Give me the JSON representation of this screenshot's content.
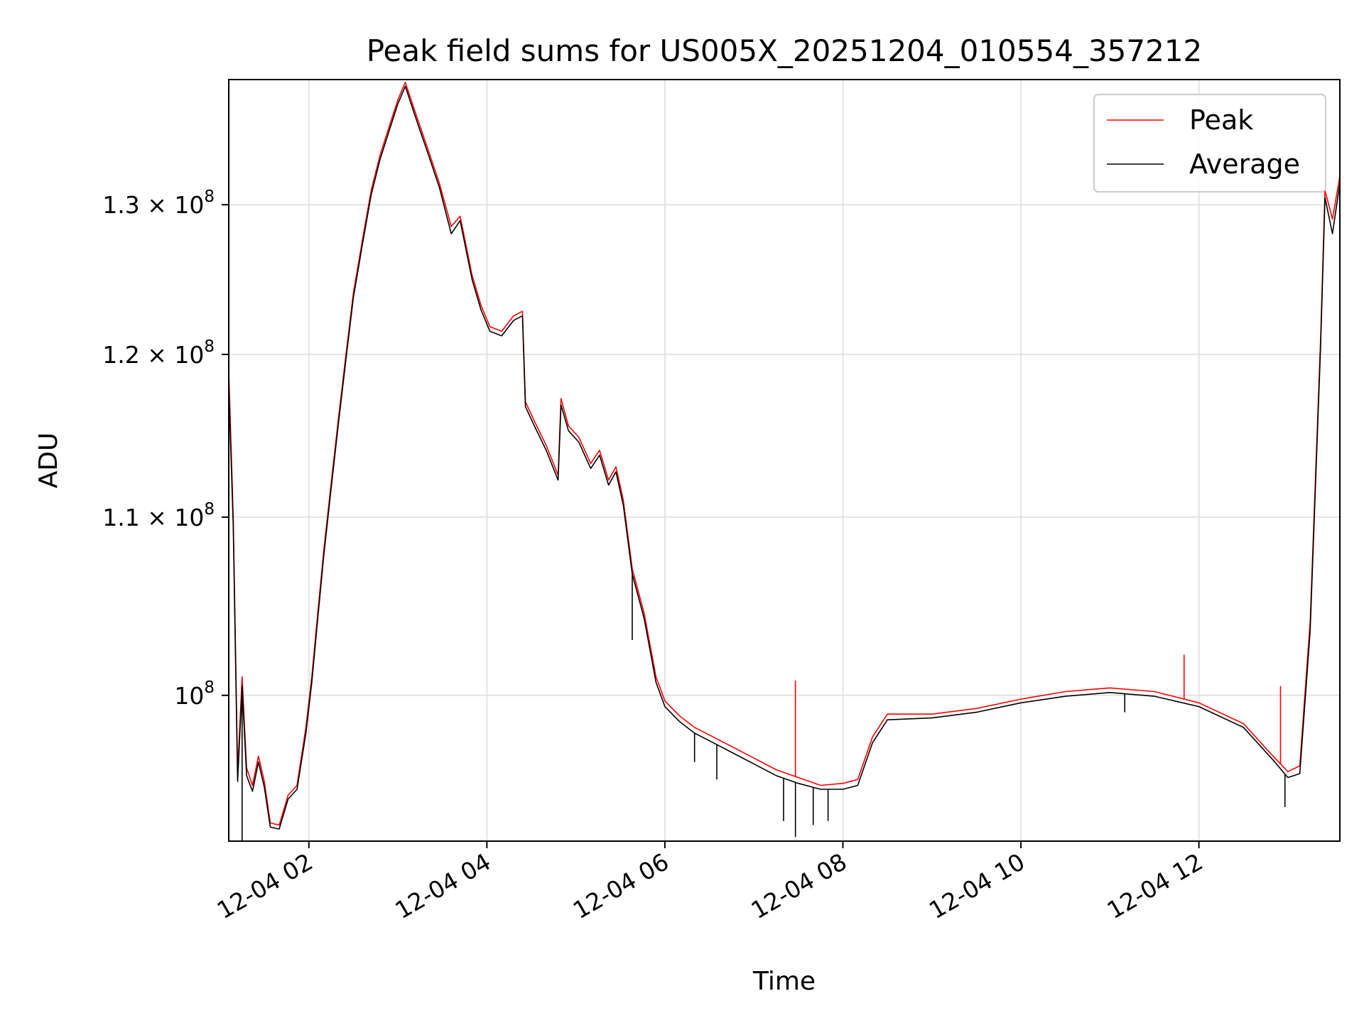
{
  "chart_data": {
    "type": "line",
    "title": "Peak field sums for US005X_20251204_010554_357212",
    "xlabel": "Time",
    "ylabel": "ADU",
    "y_scale": "log",
    "ylim": [
      92500000,
      139000000
    ],
    "xlim": [
      "12-04 01:06",
      "12-04 13:35"
    ],
    "grid": true,
    "legend_position": "top-right",
    "x_ticks": [
      "12-04 02",
      "12-04 04",
      "12-04 06",
      "12-04 08",
      "12-04 10",
      "12-04 12"
    ],
    "y_ticks": [
      {
        "value": 100000000,
        "label_base": "10",
        "label_exp": "8"
      },
      {
        "value": 110000000,
        "label_base": "1.1 × 10",
        "label_exp": "8"
      },
      {
        "value": 120000000,
        "label_base": "1.2 × 10",
        "label_exp": "8"
      },
      {
        "value": 130000000,
        "label_base": "1.3 × 10",
        "label_exp": "8"
      }
    ],
    "series": [
      {
        "name": "Peak",
        "color": "#ff0000",
        "points": [
          [
            "12-04 01:06",
            119000000
          ],
          [
            "12-04 01:09",
            110000000
          ],
          [
            "12-04 01:12",
            96000000
          ],
          [
            "12-04 01:15",
            101000000
          ],
          [
            "12-04 01:18",
            96200000
          ],
          [
            "12-04 01:22",
            95300000
          ],
          [
            "12-04 01:26",
            96800000
          ],
          [
            "12-04 01:30",
            95500000
          ],
          [
            "12-04 01:34",
            93400000
          ],
          [
            "12-04 01:40",
            93300000
          ],
          [
            "12-04 01:46",
            94800000
          ],
          [
            "12-04 01:52",
            95300000
          ],
          [
            "12-04 01:58",
            98300000
          ],
          [
            "12-04 02:02",
            101000000
          ],
          [
            "12-04 02:06",
            104500000
          ],
          [
            "12-04 02:10",
            108000000
          ],
          [
            "12-04 02:15",
            112000000
          ],
          [
            "12-04 02:20",
            116000000
          ],
          [
            "12-04 02:25",
            120000000
          ],
          [
            "12-04 02:30",
            124000000
          ],
          [
            "12-04 02:36",
            127500000
          ],
          [
            "12-04 02:42",
            131000000
          ],
          [
            "12-04 02:48",
            133500000
          ],
          [
            "12-04 02:54",
            135500000
          ],
          [
            "12-04 03:00",
            137500000
          ],
          [
            "12-04 03:05",
            138800000
          ],
          [
            "12-04 03:12",
            136500000
          ],
          [
            "12-04 03:20",
            134000000
          ],
          [
            "12-04 03:28",
            131500000
          ],
          [
            "12-04 03:36",
            128500000
          ],
          [
            "12-04 03:42",
            129200000
          ],
          [
            "12-04 03:50",
            125200000
          ],
          [
            "12-04 03:56",
            123200000
          ],
          [
            "12-04 04:02",
            121800000
          ],
          [
            "12-04 04:10",
            121500000
          ],
          [
            "12-04 04:18",
            122500000
          ],
          [
            "12-04 04:24",
            122800000
          ],
          [
            "12-04 04:26",
            117000000
          ],
          [
            "12-04 04:32",
            115800000
          ],
          [
            "12-04 04:40",
            114300000
          ],
          [
            "12-04 04:48",
            112500000
          ],
          [
            "12-04 04:50",
            117200000
          ],
          [
            "12-04 04:55",
            115500000
          ],
          [
            "12-04 05:02",
            114800000
          ],
          [
            "12-04 05:10",
            113200000
          ],
          [
            "12-04 05:16",
            114000000
          ],
          [
            "12-04 05:22",
            112200000
          ],
          [
            "12-04 05:27",
            113000000
          ],
          [
            "12-04 05:32",
            111000000
          ],
          [
            "12-04 05:38",
            107000000
          ],
          [
            "12-04 05:46",
            104500000
          ],
          [
            "12-04 05:54",
            101000000
          ],
          [
            "12-04 06:00",
            99700000
          ],
          [
            "12-04 06:10",
            98900000
          ],
          [
            "12-04 06:20",
            98300000
          ],
          [
            "12-04 06:30",
            97900000
          ],
          [
            "12-04 06:45",
            97300000
          ],
          [
            "12-04 07:00",
            96700000
          ],
          [
            "12-04 07:15",
            96100000
          ],
          [
            "12-04 07:30",
            95700000
          ],
          [
            "12-04 07:45",
            95300000
          ],
          [
            "12-04 08:00",
            95400000
          ],
          [
            "12-04 08:10",
            95600000
          ],
          [
            "12-04 08:20",
            97800000
          ],
          [
            "12-04 08:30",
            99000000
          ],
          [
            "12-04 09:00",
            99000000
          ],
          [
            "12-04 09:30",
            99300000
          ],
          [
            "12-04 10:00",
            99800000
          ],
          [
            "12-04 10:30",
            100200000
          ],
          [
            "12-04 11:00",
            100400000
          ],
          [
            "12-04 11:30",
            100200000
          ],
          [
            "12-04 12:00",
            99600000
          ],
          [
            "12-04 12:30",
            98500000
          ],
          [
            "12-04 12:50",
            96800000
          ],
          [
            "12-04 13:00",
            96000000
          ],
          [
            "12-04 13:08",
            96300000
          ],
          [
            "12-04 13:15",
            104000000
          ],
          [
            "12-04 13:22",
            121000000
          ],
          [
            "12-04 13:25",
            131000000
          ],
          [
            "12-04 13:30",
            129000000
          ],
          [
            "12-04 13:35",
            132000000
          ]
        ]
      },
      {
        "name": "Average",
        "color": "#000000",
        "points": [
          [
            "12-04 01:06",
            118000000
          ],
          [
            "12-04 01:09",
            109500000
          ],
          [
            "12-04 01:12",
            95500000
          ],
          [
            "12-04 01:15",
            100500000
          ],
          [
            "12-04 01:18",
            95800000
          ],
          [
            "12-04 01:22",
            95000000
          ],
          [
            "12-04 01:26",
            96500000
          ],
          [
            "12-04 01:30",
            95200000
          ],
          [
            "12-04 01:34",
            93200000
          ],
          [
            "12-04 01:40",
            93100000
          ],
          [
            "12-04 01:46",
            94600000
          ],
          [
            "12-04 01:52",
            95100000
          ],
          [
            "12-04 01:58",
            98000000
          ],
          [
            "12-04 02:02",
            100700000
          ],
          [
            "12-04 02:06",
            104200000
          ],
          [
            "12-04 02:10",
            107700000
          ],
          [
            "12-04 02:15",
            111700000
          ],
          [
            "12-04 02:20",
            115700000
          ],
          [
            "12-04 02:25",
            119700000
          ],
          [
            "12-04 02:30",
            123700000
          ],
          [
            "12-04 02:36",
            127200000
          ],
          [
            "12-04 02:42",
            130700000
          ],
          [
            "12-04 02:48",
            133200000
          ],
          [
            "12-04 02:54",
            135200000
          ],
          [
            "12-04 03:00",
            137200000
          ],
          [
            "12-04 03:05",
            138500000
          ],
          [
            "12-04 03:12",
            136200000
          ],
          [
            "12-04 03:20",
            133700000
          ],
          [
            "12-04 03:28",
            131200000
          ],
          [
            "12-04 03:36",
            128000000
          ],
          [
            "12-04 03:42",
            128900000
          ],
          [
            "12-04 03:50",
            124900000
          ],
          [
            "12-04 03:56",
            122900000
          ],
          [
            "12-04 04:02",
            121500000
          ],
          [
            "12-04 04:10",
            121200000
          ],
          [
            "12-04 04:18",
            122200000
          ],
          [
            "12-04 04:24",
            122500000
          ],
          [
            "12-04 04:26",
            116700000
          ],
          [
            "12-04 04:32",
            115500000
          ],
          [
            "12-04 04:40",
            114000000
          ],
          [
            "12-04 04:48",
            112200000
          ],
          [
            "12-04 04:50",
            116800000
          ],
          [
            "12-04 04:55",
            115200000
          ],
          [
            "12-04 05:02",
            114500000
          ],
          [
            "12-04 05:10",
            112900000
          ],
          [
            "12-04 05:16",
            113700000
          ],
          [
            "12-04 05:22",
            111900000
          ],
          [
            "12-04 05:27",
            112700000
          ],
          [
            "12-04 05:32",
            110700000
          ],
          [
            "12-04 05:38",
            106700000
          ],
          [
            "12-04 05:46",
            104200000
          ],
          [
            "12-04 05:54",
            100700000
          ],
          [
            "12-04 06:00",
            99400000
          ],
          [
            "12-04 06:10",
            98600000
          ],
          [
            "12-04 06:20",
            98000000
          ],
          [
            "12-04 06:30",
            97600000
          ],
          [
            "12-04 06:45",
            97000000
          ],
          [
            "12-04 07:00",
            96400000
          ],
          [
            "12-04 07:15",
            95800000
          ],
          [
            "12-04 07:30",
            95400000
          ],
          [
            "12-04 07:45",
            95100000
          ],
          [
            "12-04 08:00",
            95100000
          ],
          [
            "12-04 08:10",
            95300000
          ],
          [
            "12-04 08:20",
            97500000
          ],
          [
            "12-04 08:30",
            98700000
          ],
          [
            "12-04 09:00",
            98800000
          ],
          [
            "12-04 09:30",
            99100000
          ],
          [
            "12-04 10:00",
            99600000
          ],
          [
            "12-04 10:30",
            99950000
          ],
          [
            "12-04 11:00",
            100150000
          ],
          [
            "12-04 11:30",
            99950000
          ],
          [
            "12-04 12:00",
            99400000
          ],
          [
            "12-04 12:30",
            98300000
          ],
          [
            "12-04 12:50",
            96600000
          ],
          [
            "12-04 13:00",
            95700000
          ],
          [
            "12-04 13:08",
            95900000
          ],
          [
            "12-04 13:15",
            103500000
          ],
          [
            "12-04 13:22",
            120500000
          ],
          [
            "12-04 13:25",
            130500000
          ],
          [
            "12-04 13:30",
            128000000
          ],
          [
            "12-04 13:35",
            131500000
          ]
        ]
      }
    ],
    "spikes": [
      {
        "series": "Average",
        "x": "12-04 01:15",
        "y": 92500000
      },
      {
        "series": "Average",
        "x": "12-04 05:38",
        "y": 103000000
      },
      {
        "series": "Average",
        "x": "12-04 05:52",
        "y": 101500000
      },
      {
        "series": "Average",
        "x": "12-04 06:20",
        "y": 96500000
      },
      {
        "series": "Average",
        "x": "12-04 06:35",
        "y": 95600000
      },
      {
        "series": "Average",
        "x": "12-04 07:20",
        "y": 93500000
      },
      {
        "series": "Peak",
        "x": "12-04 07:28",
        "y": 100800000
      },
      {
        "series": "Average",
        "x": "12-04 07:28",
        "y": 92700000
      },
      {
        "series": "Average",
        "x": "12-04 07:40",
        "y": 93300000
      },
      {
        "series": "Average",
        "x": "12-04 07:50",
        "y": 93500000
      },
      {
        "series": "Peak",
        "x": "12-04 11:50",
        "y": 102200000
      },
      {
        "series": "Average",
        "x": "12-04 11:10",
        "y": 99100000
      },
      {
        "series": "Peak",
        "x": "12-04 12:55",
        "y": 100500000
      },
      {
        "series": "Average",
        "x": "12-04 12:58",
        "y": 94200000
      }
    ]
  }
}
